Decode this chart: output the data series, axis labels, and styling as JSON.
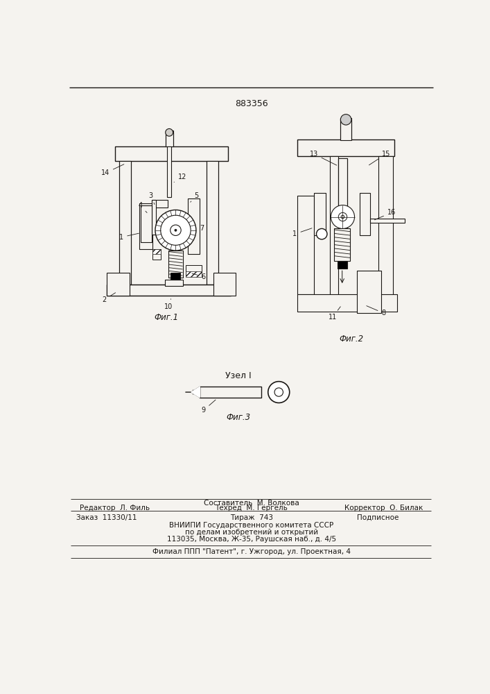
{
  "patent_number": "883356",
  "bg_color": "#f5f3ef",
  "line_color": "#1a1714",
  "fig1_label": "Фиг.1",
  "fig2_label": "Фиг.2",
  "fig3_label": "Фиг.3",
  "uzl_label": "Узел I",
  "footer_editor": "Редактор  Л. Филь",
  "footer_composer_top": "Составитель  М. Волкова",
  "footer_tech": "Техред  М. Гергель",
  "footer_corrector": "Корректор  О. Билак",
  "footer_order": "Заказ  11330/11",
  "footer_tirazh": "Тираж  743",
  "footer_podpisnoe": "Подписное",
  "footer_vnipi1": "ВНИИПИ Государственного комитета СССР",
  "footer_vnipi2": "по делам изобретений и открытий",
  "footer_vnipi3": "113035, Москва, Ж-35, Раушская наб., д. 4/5",
  "footer_filial": "Филиал ППП \"Патент\", г. Ужгород, ул. Проектная, 4"
}
